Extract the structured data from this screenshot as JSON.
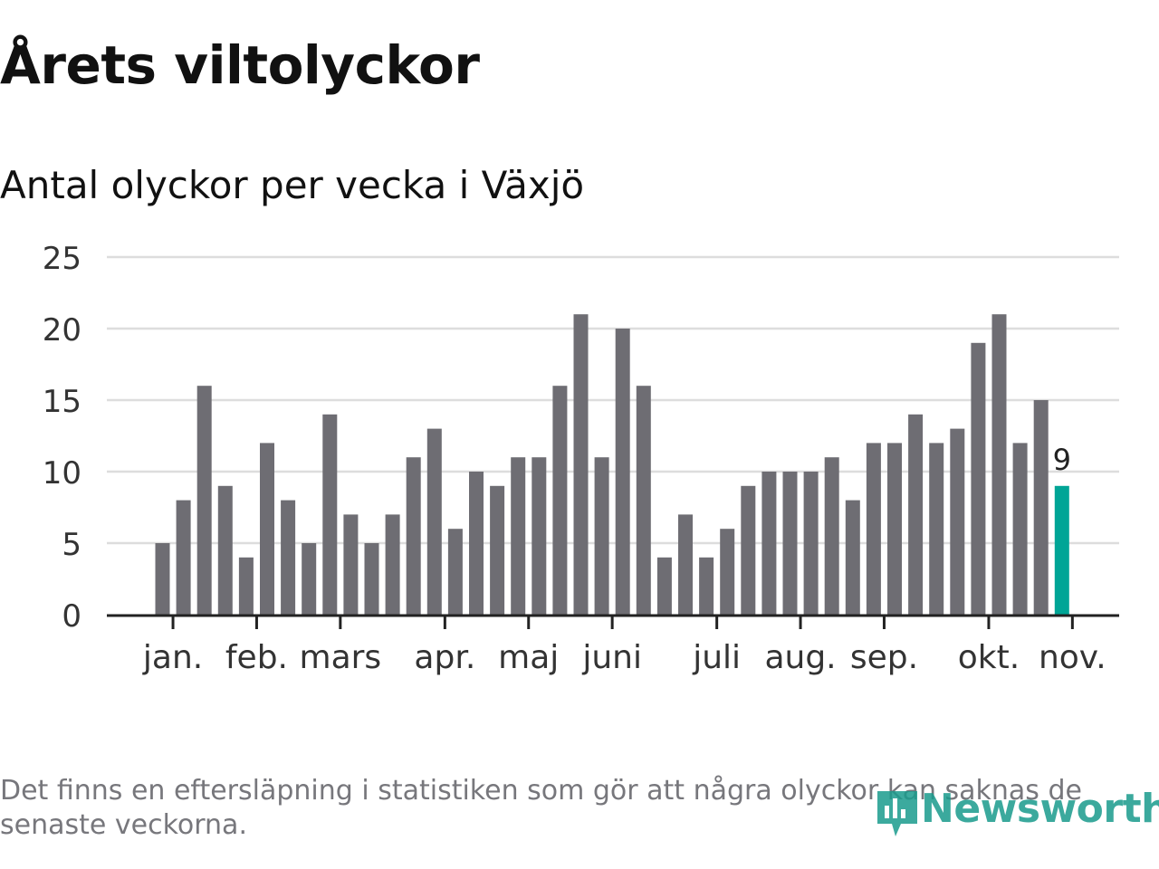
{
  "title": "Årets viltolyckor",
  "subtitle": "Antal olyckor per vecka i Växjö",
  "footnote": "Det finns en eftersläpning i statistiken som gör att några olyckor kan saknas de senaste veckorna.",
  "brand": "Newsworthy",
  "colors": {
    "bar": "#6e6d73",
    "highlight": "#00a596",
    "grid": "#dddddd",
    "axis": "#222222"
  },
  "chart_data": {
    "type": "bar",
    "title": "Antal olyckor per vecka i Växjö",
    "xlabel": "",
    "ylabel": "",
    "ylim": [
      0,
      25
    ],
    "yticks": [
      0,
      5,
      10,
      15,
      20,
      25
    ],
    "values": [
      5,
      8,
      16,
      9,
      4,
      12,
      8,
      5,
      14,
      7,
      5,
      7,
      11,
      13,
      6,
      10,
      9,
      11,
      11,
      16,
      21,
      11,
      20,
      16,
      4,
      7,
      4,
      6,
      9,
      10,
      10,
      10,
      11,
      8,
      12,
      12,
      14,
      12,
      13,
      19,
      21,
      12,
      15,
      9
    ],
    "month_labels": [
      {
        "label": "jan.",
        "week": 0.5
      },
      {
        "label": "feb.",
        "week": 4.5
      },
      {
        "label": "mars",
        "week": 8.5
      },
      {
        "label": "apr.",
        "week": 13.5
      },
      {
        "label": "maj",
        "week": 17.5
      },
      {
        "label": "juni",
        "week": 21.5
      },
      {
        "label": "juli",
        "week": 26.5
      },
      {
        "label": "aug.",
        "week": 30.5
      },
      {
        "label": "sep.",
        "week": 34.5
      },
      {
        "label": "okt.",
        "week": 39.5
      },
      {
        "label": "nov.",
        "week": 43.5
      }
    ],
    "highlight_index": 43,
    "highlight_label": "9"
  }
}
